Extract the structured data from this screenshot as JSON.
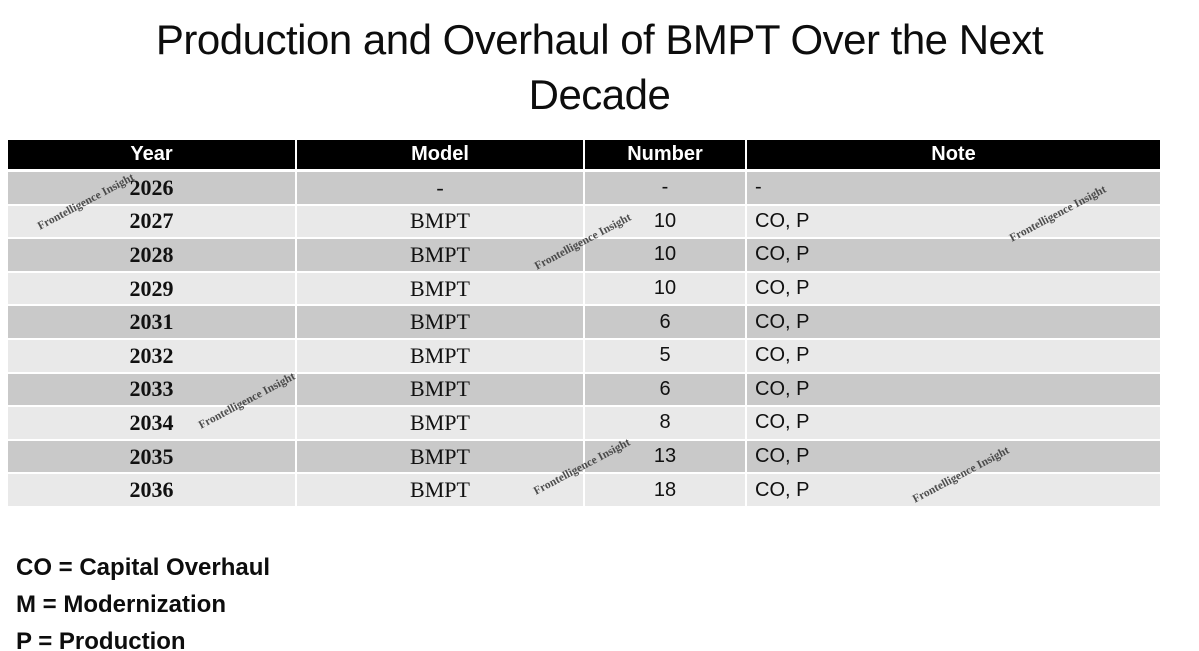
{
  "title": "Production and Overhaul of BMPT Over the Next Decade",
  "watermark_text": "Frontelligence Insight",
  "table": {
    "columns": [
      "Year",
      "Model",
      "Number",
      "Note"
    ],
    "rows": [
      {
        "year": "2026",
        "model": "-",
        "number": "-",
        "note": "-"
      },
      {
        "year": "2027",
        "model": "BMPT",
        "number": "10",
        "note": "CO, P"
      },
      {
        "year": "2028",
        "model": "BMPT",
        "number": "10",
        "note": "CO, P"
      },
      {
        "year": "2029",
        "model": "BMPT",
        "number": "10",
        "note": "CO, P"
      },
      {
        "year": "2031",
        "model": "BMPT",
        "number": "6",
        "note": "CO, P"
      },
      {
        "year": "2032",
        "model": "BMPT",
        "number": "5",
        "note": "CO, P"
      },
      {
        "year": "2033",
        "model": "BMPT",
        "number": "6",
        "note": "CO, P"
      },
      {
        "year": "2034",
        "model": "BMPT",
        "number": "8",
        "note": "CO, P"
      },
      {
        "year": "2035",
        "model": "BMPT",
        "number": "13",
        "note": "CO, P"
      },
      {
        "year": "2036",
        "model": "BMPT",
        "number": "18",
        "note": "CO, P"
      }
    ]
  },
  "legend": [
    "CO = Capital Overhaul",
    "M = Modernization",
    "P = Production"
  ],
  "chart_data": {
    "type": "table",
    "title": "Production and Overhaul of BMPT Over the Next Decade",
    "columns": [
      "Year",
      "Model",
      "Number",
      "Note"
    ],
    "rows": [
      [
        2026,
        null,
        null,
        null
      ],
      [
        2027,
        "BMPT",
        10,
        "CO, P"
      ],
      [
        2028,
        "BMPT",
        10,
        "CO, P"
      ],
      [
        2029,
        "BMPT",
        10,
        "CO, P"
      ],
      [
        2031,
        "BMPT",
        6,
        "CO, P"
      ],
      [
        2032,
        "BMPT",
        5,
        "CO, P"
      ],
      [
        2033,
        "BMPT",
        6,
        "CO, P"
      ],
      [
        2034,
        "BMPT",
        8,
        "CO, P"
      ],
      [
        2035,
        "BMPT",
        13,
        "CO, P"
      ],
      [
        2036,
        "BMPT",
        18,
        "CO, P"
      ]
    ],
    "abbreviations": {
      "CO": "Capital Overhaul",
      "M": "Modernization",
      "P": "Production"
    },
    "source_watermark": "Frontelligence Insight"
  },
  "colors": {
    "header_bg": "#000000",
    "header_text": "#ffffff",
    "row_dark": "#c9c9c9",
    "row_light": "#e9e9e9",
    "watermark": "#3d3d3d",
    "text": "#111111"
  }
}
